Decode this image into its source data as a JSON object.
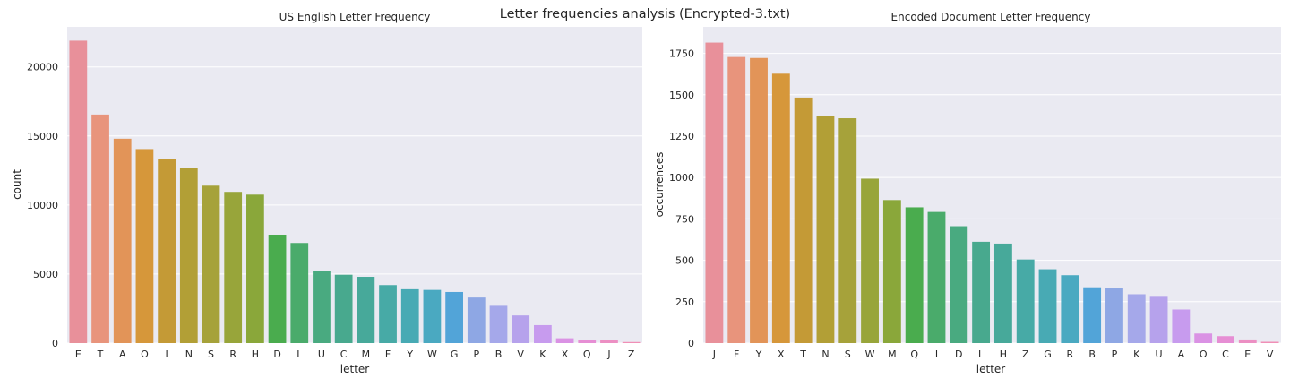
{
  "figure": {
    "suptitle": "Letter frequencies analysis (Encrypted-3.txt)"
  },
  "chart_data": [
    {
      "type": "bar",
      "title": "US English Letter Frequency",
      "xlabel": "letter",
      "ylabel": "count",
      "ylim": [
        0,
        22900
      ],
      "yticks": [
        0,
        5000,
        10000,
        15000,
        20000
      ],
      "grid": true,
      "categories": [
        "E",
        "T",
        "A",
        "O",
        "I",
        "N",
        "S",
        "R",
        "H",
        "D",
        "L",
        "U",
        "C",
        "M",
        "F",
        "Y",
        "W",
        "G",
        "P",
        "B",
        "V",
        "K",
        "X",
        "Q",
        "J",
        "Z"
      ],
      "values": [
        21900,
        16550,
        14800,
        14050,
        13300,
        12650,
        11400,
        10950,
        10750,
        7850,
        7250,
        5200,
        4950,
        4800,
        4200,
        3900,
        3850,
        3700,
        3300,
        2700,
        2000,
        1300,
        350,
        250,
        200,
        80
      ]
    },
    {
      "type": "bar",
      "title": "Encoded Document Letter Frequency",
      "xlabel": "letter",
      "ylabel": "occurrences",
      "ylim": [
        0,
        1910
      ],
      "yticks": [
        0,
        250,
        500,
        750,
        1000,
        1250,
        1500,
        1750
      ],
      "grid": true,
      "categories": [
        "J",
        "F",
        "Y",
        "X",
        "T",
        "N",
        "S",
        "W",
        "M",
        "Q",
        "I",
        "D",
        "L",
        "H",
        "Z",
        "G",
        "R",
        "B",
        "P",
        "K",
        "U",
        "A",
        "O",
        "C",
        "E",
        "V"
      ],
      "values": [
        1815,
        1728,
        1722,
        1627,
        1483,
        1370,
        1358,
        993,
        864,
        820,
        792,
        706,
        612,
        601,
        505,
        446,
        410,
        337,
        330,
        295,
        285,
        203,
        58,
        42,
        22,
        8
      ]
    }
  ]
}
